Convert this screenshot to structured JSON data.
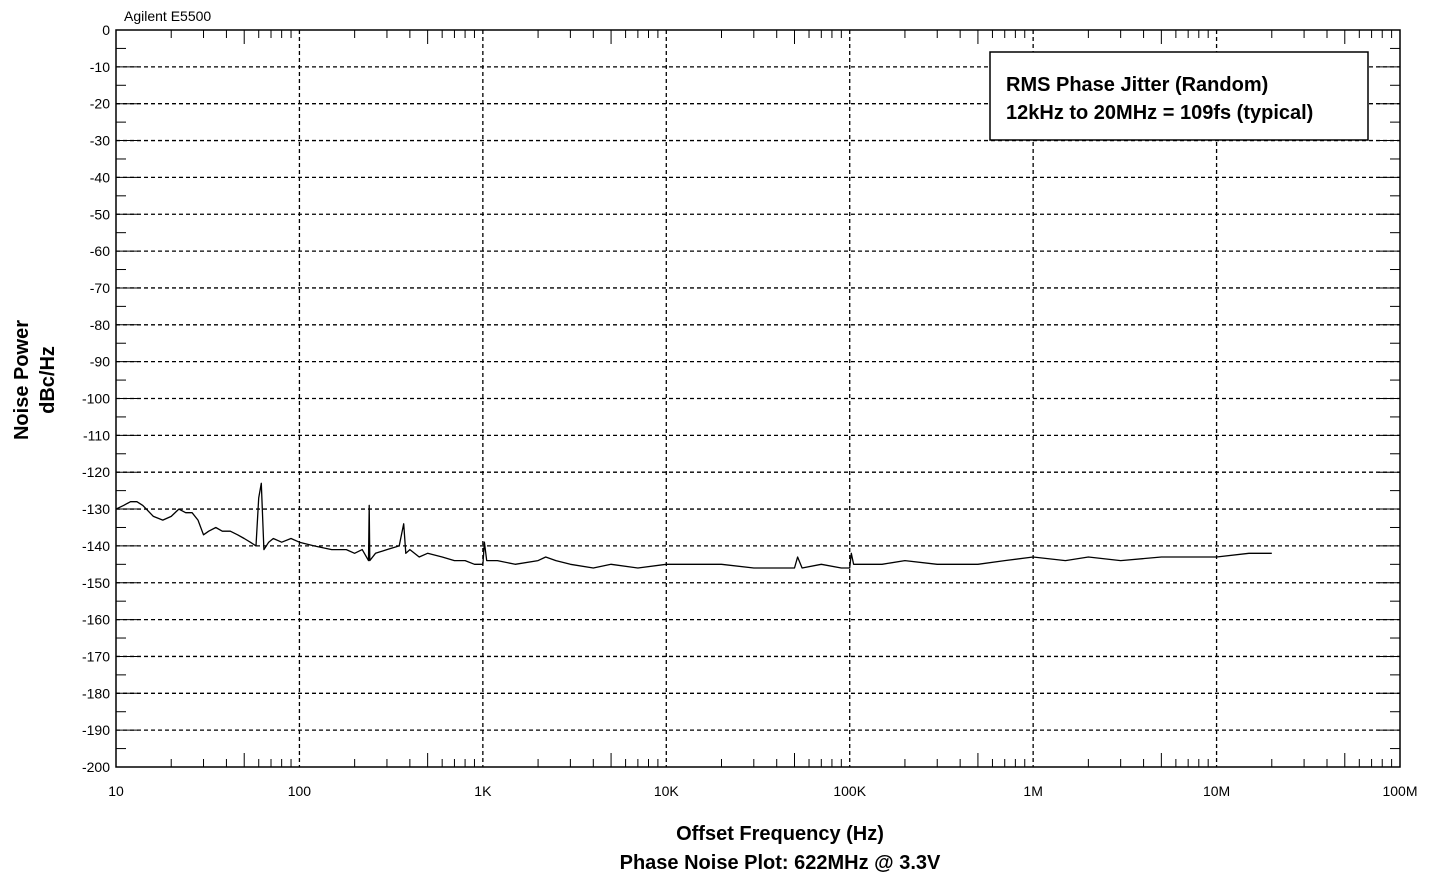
{
  "chart_data": {
    "type": "line",
    "title": "",
    "instrument_label": "Agilent E5500",
    "xlabel": "Offset Frequency (Hz)",
    "subtitle": "Phase Noise Plot: 622MHz @ 3.3V",
    "ylabel_line1": "Noise Power",
    "ylabel_line2": "dBc/Hz",
    "x_scale": "log",
    "xlim": [
      10,
      100000000
    ],
    "ylim": [
      -200,
      0
    ],
    "grid": true,
    "x_tick_values": [
      10,
      100,
      1000,
      10000,
      100000,
      1000000,
      10000000,
      100000000
    ],
    "x_tick_labels": [
      "10",
      "100",
      "1K",
      "10K",
      "100K",
      "1M",
      "10M",
      "100M"
    ],
    "y_tick_values": [
      0,
      -10,
      -20,
      -30,
      -40,
      -50,
      -60,
      -70,
      -80,
      -90,
      -100,
      -110,
      -120,
      -130,
      -140,
      -150,
      -160,
      -170,
      -180,
      -190,
      -200
    ],
    "y_tick_labels": [
      "0",
      "-10",
      "-20",
      "-30",
      "-40",
      "-50",
      "-60",
      "-70",
      "-80",
      "-90",
      "-100",
      "-110",
      "-120",
      "-130",
      "-140",
      "-150",
      "-160",
      "-170",
      "-180",
      "-190",
      "-200"
    ],
    "annotation": {
      "line1": "RMS Phase Jitter (Random)",
      "line2": "12kHz to 20MHz = 109fs (typical)",
      "placement": "top-right"
    },
    "series": [
      {
        "x": [
          10,
          11,
          12,
          13,
          14,
          16,
          18,
          20,
          22,
          24,
          26,
          28,
          30,
          32,
          35,
          38,
          42,
          46,
          50,
          54,
          58,
          60,
          62,
          64,
          68,
          72,
          80,
          90,
          100,
          120,
          150,
          180,
          200,
          220,
          238,
          240,
          242,
          260,
          300,
          350,
          370,
          380,
          400,
          450,
          500,
          600,
          700,
          800,
          900,
          1000,
          1020,
          1050,
          1100,
          1200,
          1500,
          2000,
          2200,
          2500,
          3000,
          4000,
          5000,
          7000,
          10000,
          15000,
          20000,
          30000,
          40000,
          50000,
          52000,
          55000,
          70000,
          90000,
          100000,
          102000,
          105000,
          120000,
          150000,
          200000,
          300000,
          500000,
          700000,
          1000000,
          1500000,
          2000000,
          3000000,
          5000000,
          7000000,
          10000000,
          15000000,
          20000000
        ],
        "y": [
          -130,
          -129,
          -128,
          -128,
          -129,
          -132,
          -133,
          -132,
          -130,
          -131,
          -131,
          -133,
          -137,
          -136,
          -135,
          -136,
          -136,
          -137,
          -138,
          -139,
          -140,
          -127,
          -123,
          -141,
          -139,
          -138,
          -139,
          -138,
          -139,
          -140,
          -141,
          -141,
          -142,
          -141,
          -144,
          -129,
          -144,
          -142,
          -141,
          -140,
          -134,
          -142,
          -141,
          -143,
          -142,
          -143,
          -144,
          -144,
          -145,
          -145,
          -139,
          -144,
          -144,
          -144,
          -145,
          -144,
          -143,
          -144,
          -145,
          -146,
          -145,
          -146,
          -145,
          -145,
          -145,
          -146,
          -146,
          -146,
          -143,
          -146,
          -145,
          -146,
          -146,
          -142,
          -145,
          -145,
          -145,
          -144,
          -145,
          -145,
          -144,
          -143,
          -144,
          -143,
          -144,
          -143,
          -143,
          -143,
          -142,
          -142
        ]
      }
    ]
  }
}
